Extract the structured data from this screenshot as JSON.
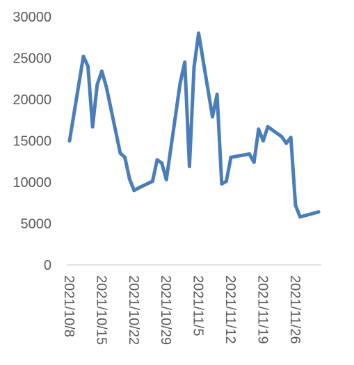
{
  "chart_data": {
    "type": "line",
    "title": "",
    "xlabel": "",
    "ylabel": "",
    "ylim": [
      0,
      30000
    ],
    "y_ticks": [
      "0",
      "5000",
      "10000",
      "15000",
      "20000",
      "25000",
      "30000"
    ],
    "x_tick_labels": [
      "2021/10/8",
      "2021/10/15",
      "2021/10/22",
      "2021/10/29",
      "2021/11/5",
      "2021/11/12",
      "2021/11/19",
      "2021/11/26"
    ],
    "xlim": [
      "2021-10-08",
      "2021-12-01"
    ],
    "grid": false,
    "legend": "none",
    "colors": {
      "line": "#4a7ebb",
      "axis": "#d9d9d9",
      "text": "#595959"
    },
    "series": [
      {
        "x": [
          "2021-10-08",
          "2021-10-11",
          "2021-10-12",
          "2021-10-13",
          "2021-10-14",
          "2021-10-15",
          "2021-10-16",
          "2021-10-19",
          "2021-10-20",
          "2021-10-21",
          "2021-10-22",
          "2021-10-23",
          "2021-10-26",
          "2021-10-27",
          "2021-10-28",
          "2021-10-29",
          "2021-11-01",
          "2021-11-02",
          "2021-11-03",
          "2021-11-04",
          "2021-11-05",
          "2021-11-08",
          "2021-11-09",
          "2021-11-10",
          "2021-11-11",
          "2021-11-12",
          "2021-11-13",
          "2021-11-16",
          "2021-11-17",
          "2021-11-18",
          "2021-11-19",
          "2021-11-20",
          "2021-11-23",
          "2021-11-24",
          "2021-11-25",
          "2021-11-26",
          "2021-11-27",
          "2021-12-01"
        ],
        "values": [
          15000,
          25200,
          24000,
          16700,
          21800,
          23400,
          21500,
          13500,
          13000,
          10400,
          9000,
          9300,
          10100,
          12700,
          12300,
          10300,
          22000,
          24500,
          11900,
          23900,
          28000,
          17900,
          20600,
          9800,
          10100,
          13000,
          13100,
          13400,
          12400,
          16400,
          15000,
          16700,
          15500,
          14700,
          15400,
          7200,
          5800,
          6400
        ]
      }
    ]
  }
}
